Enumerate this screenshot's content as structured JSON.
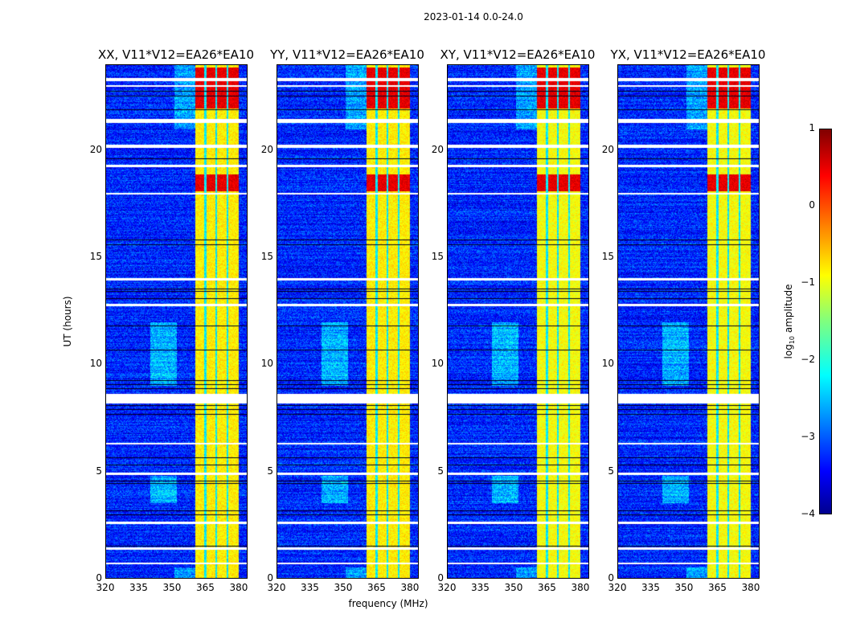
{
  "chart_data": {
    "type": "heatmap",
    "title": "2023-01-14 0.0-24.0",
    "xlabel": "frequency (MHz)",
    "ylabel": "UT (hours)",
    "xlim": [
      320,
      384
    ],
    "ylim": [
      0,
      24
    ],
    "xticks": [
      "320",
      "335",
      "350",
      "365",
      "380"
    ],
    "xtick_values": [
      320,
      335,
      350,
      365,
      380
    ],
    "yticks": [
      "0",
      "5",
      "10",
      "15",
      "20"
    ],
    "ytick_values": [
      0,
      5,
      10,
      15,
      20
    ],
    "panels": [
      {
        "title": "XX, V11*V12=EA26*EA10",
        "seed": 1
      },
      {
        "title": "YY, V11*V12=EA26*EA10",
        "seed": 2
      },
      {
        "title": "XY, V11*V12=EA26*EA10",
        "seed": 3
      },
      {
        "title": "YX, V11*V12=EA26*EA10",
        "seed": 4
      }
    ],
    "colorbar": {
      "label": "log10 amplitude",
      "label_main": "log",
      "label_sub": "10",
      "label_rest": " amplitude",
      "range": [
        -4,
        1
      ],
      "ticks": [
        "1",
        "0",
        "−1",
        "−2",
        "−3",
        "−4"
      ],
      "tick_values": [
        1,
        0,
        -1,
        -2,
        -3,
        -4
      ],
      "colormap": "jet"
    },
    "features": {
      "background_log_amp": -3.2,
      "rfi_band_mhz": [
        360.5,
        380
      ],
      "rfi_band_log_amp": -0.8,
      "rfi_band_gaps_mhz": [
        365,
        370,
        375
      ],
      "strong_periods_hours": [
        [
          22,
          23.9
        ],
        [
          18.1,
          18.9
        ]
      ],
      "strong_log_amp": 0.5,
      "flagged_hours": [
        [
          23.25,
          23.4
        ],
        [
          23.0,
          23.08
        ],
        [
          21.3,
          21.5
        ],
        [
          20.15,
          20.3
        ],
        [
          19.25,
          19.35
        ],
        [
          17.95,
          18.05
        ],
        [
          13.95,
          14.05
        ],
        [
          12.75,
          12.85
        ],
        [
          8.2,
          8.65
        ],
        [
          6.25,
          6.35
        ],
        [
          4.85,
          4.95
        ],
        [
          2.55,
          2.65
        ],
        [
          1.35,
          1.45
        ],
        [
          0.65,
          0.72
        ]
      ]
    }
  }
}
